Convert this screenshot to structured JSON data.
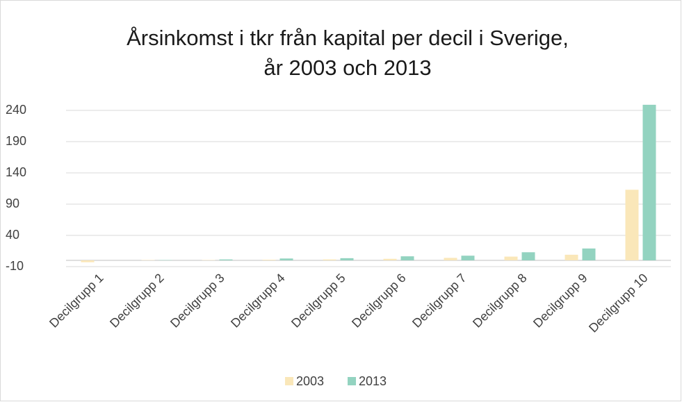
{
  "chart_data": {
    "type": "bar",
    "title": [
      "Årsinkomst i tkr från kapital per decil i Sverige,",
      "år 2003 och 2013"
    ],
    "categories": [
      "Decilgrupp 1",
      "Decilgrupp 2",
      "Decilgrupp 3",
      "Decilgrupp 4",
      "Decilgrupp 5",
      "Decilgrupp 6",
      "Decilgrupp 7",
      "Decilgrupp 8",
      "Decilgrupp 9",
      "Decilgrupp 10"
    ],
    "series": [
      {
        "name": "2003",
        "color": "#fae7b9",
        "values": [
          -3,
          0.5,
          0.5,
          1,
          1.5,
          2.5,
          4,
          6,
          9,
          113
        ]
      },
      {
        "name": "2013",
        "color": "#93d3c0",
        "values": [
          0,
          0.5,
          1.5,
          3,
          3.5,
          6.5,
          7.5,
          13,
          19,
          249
        ]
      }
    ],
    "ylim": [
      -10,
      250
    ],
    "yticks": [
      -10,
      40,
      90,
      140,
      190,
      240
    ],
    "grid": true,
    "legend": "bottom"
  }
}
